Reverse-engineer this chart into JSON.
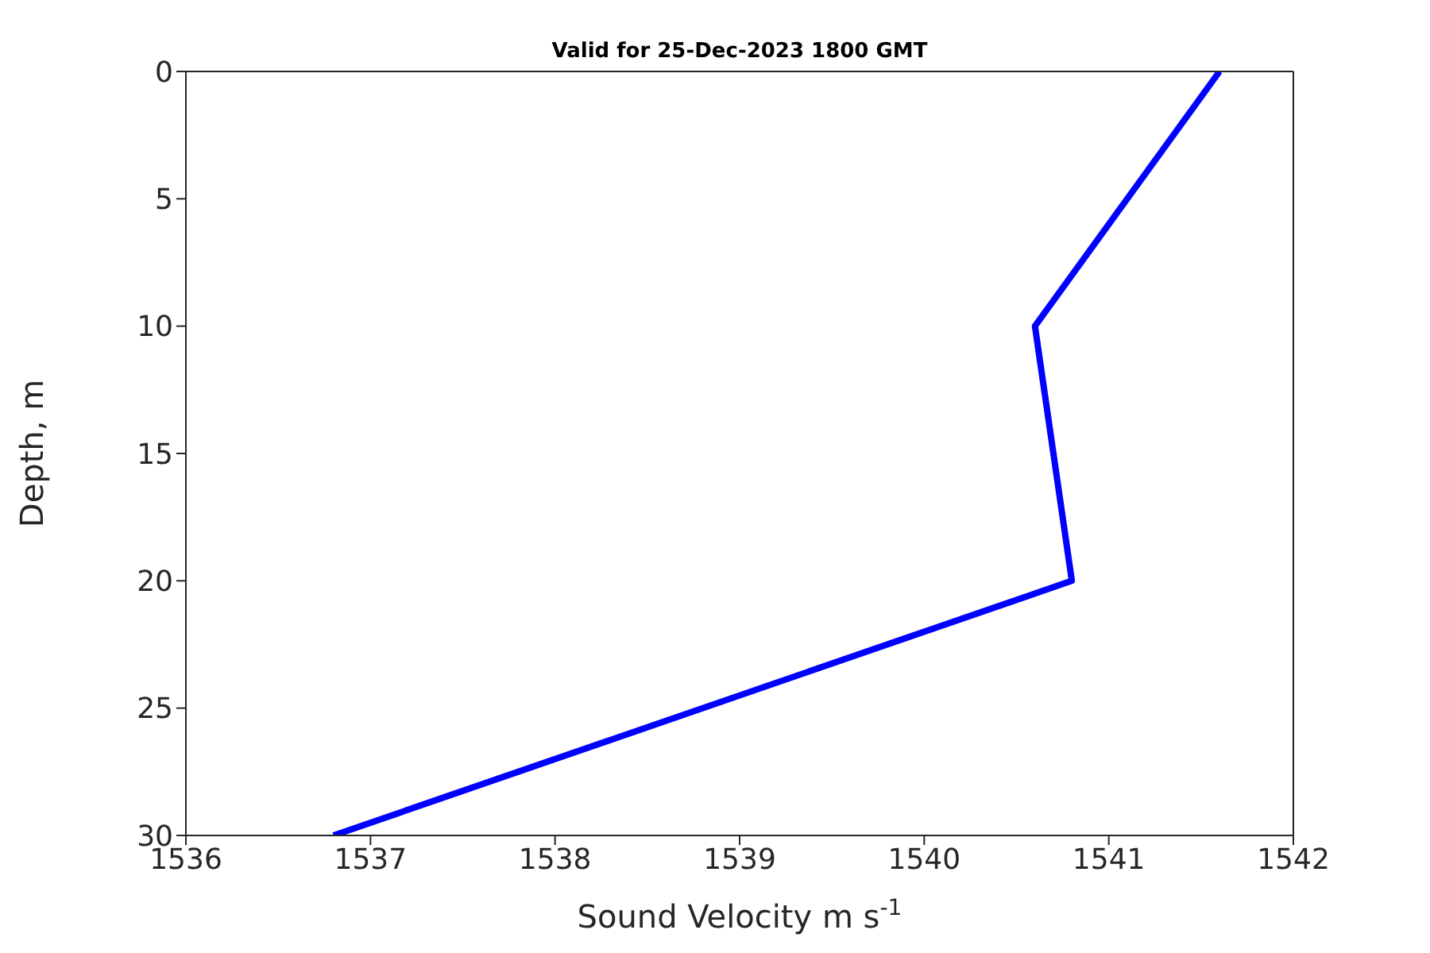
{
  "chart_data": {
    "type": "line",
    "title": "Valid for 25-Dec-2023 1800 GMT",
    "xlabel": "Sound Velocity m s$^{-1}$",
    "ylabel": "Depth, m",
    "series": [
      {
        "color": "#0000ff",
        "x": [
          1541.6,
          1540.6,
          1540.8,
          1536.8
        ],
        "values": [
          0,
          10,
          20,
          30
        ]
      }
    ],
    "xlim": [
      1536,
      1542
    ],
    "xticks": [
      1536,
      1537,
      1538,
      1539,
      1540,
      1541,
      1542
    ],
    "ylim": [
      30,
      0
    ],
    "yticks": [
      0,
      5,
      10,
      15,
      20,
      25,
      30
    ],
    "marker": "none",
    "line_style": "solid"
  }
}
